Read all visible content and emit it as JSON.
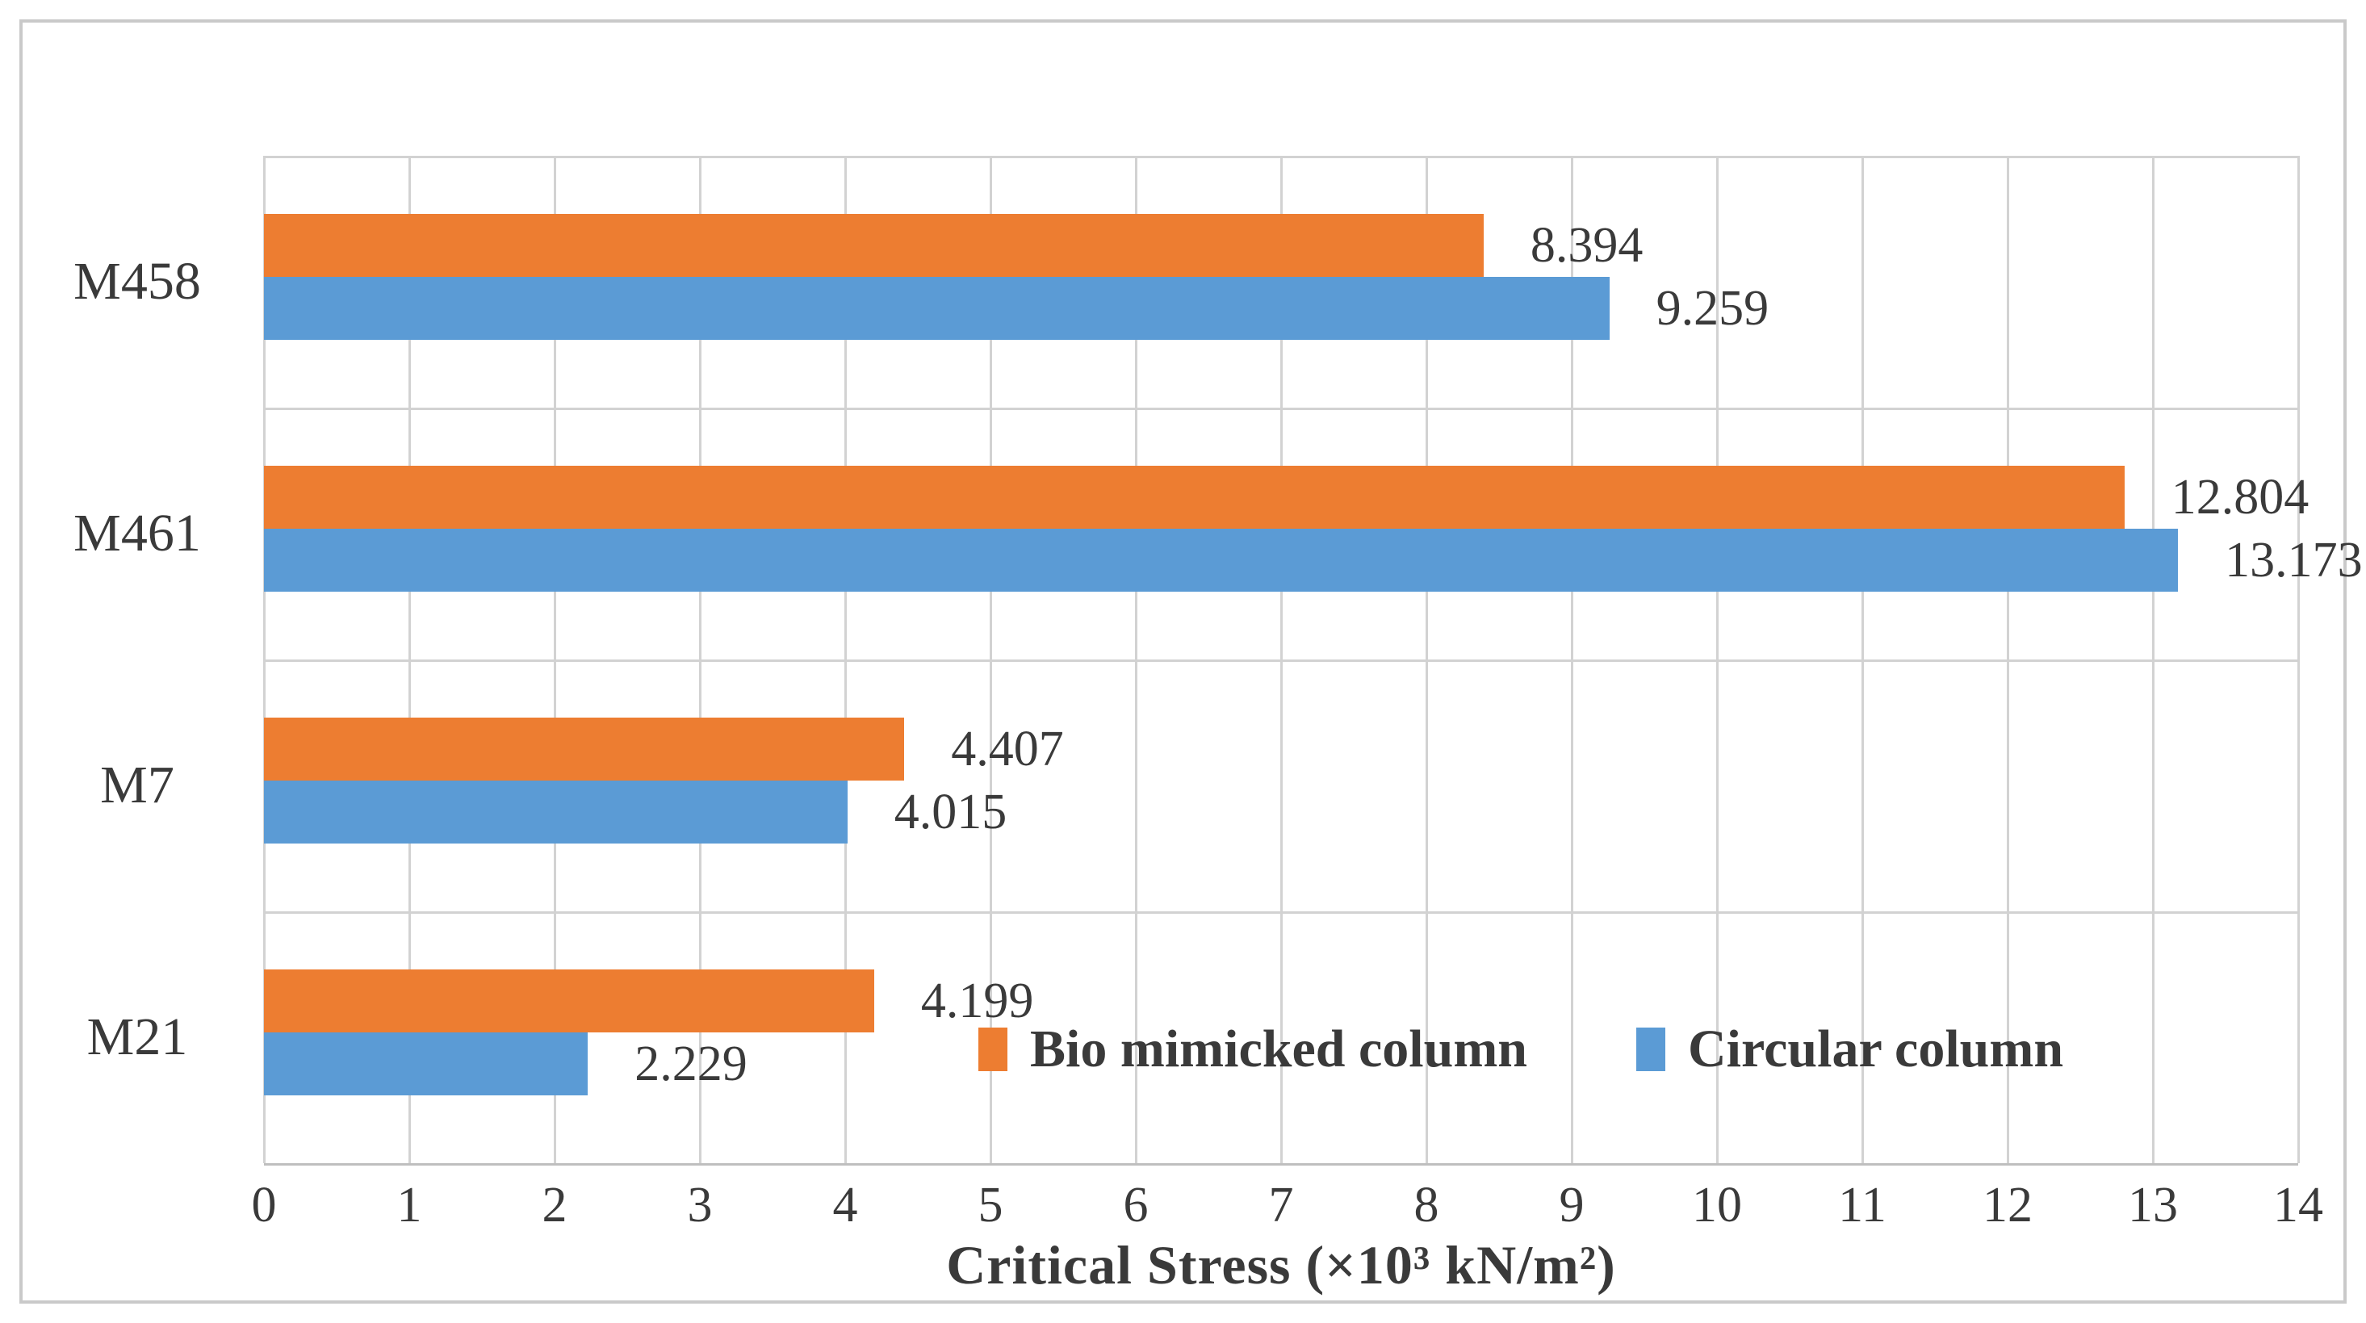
{
  "chart_data": {
    "type": "bar",
    "orientation": "horizontal",
    "categories": [
      "M458",
      "M461",
      "M7",
      "M21"
    ],
    "series": [
      {
        "name": "Bio mimicked column",
        "color": "#ED7D31",
        "values": [
          8.394,
          12.804,
          4.407,
          4.199
        ]
      },
      {
        "name": "Circular column",
        "color": "#5B9BD5",
        "values": [
          9.259,
          13.173,
          4.015,
          2.229
        ]
      }
    ],
    "data_labels": [
      "8.394",
      "9.259",
      "12.804",
      "13.173",
      "4.407",
      "4.015",
      "4.199",
      "2.229"
    ],
    "xlabel": "Critical Stress (×10³ kN/m²)",
    "xlim": [
      0,
      14
    ],
    "xticks": [
      0,
      1,
      2,
      3,
      4,
      5,
      6,
      7,
      8,
      9,
      10,
      11,
      12,
      13,
      14
    ],
    "grid": "vertical lines at every unit, horizontal lines at category boundaries",
    "legend_position": "inside-bottom-right",
    "value_label_decimals": 3
  },
  "style_colors": {
    "text": "#3a3a3a",
    "gridline": "#d2d2d2",
    "axis_line": "#bfbfbf",
    "figure_border": "#c9c9c9",
    "background": "#ffffff"
  }
}
